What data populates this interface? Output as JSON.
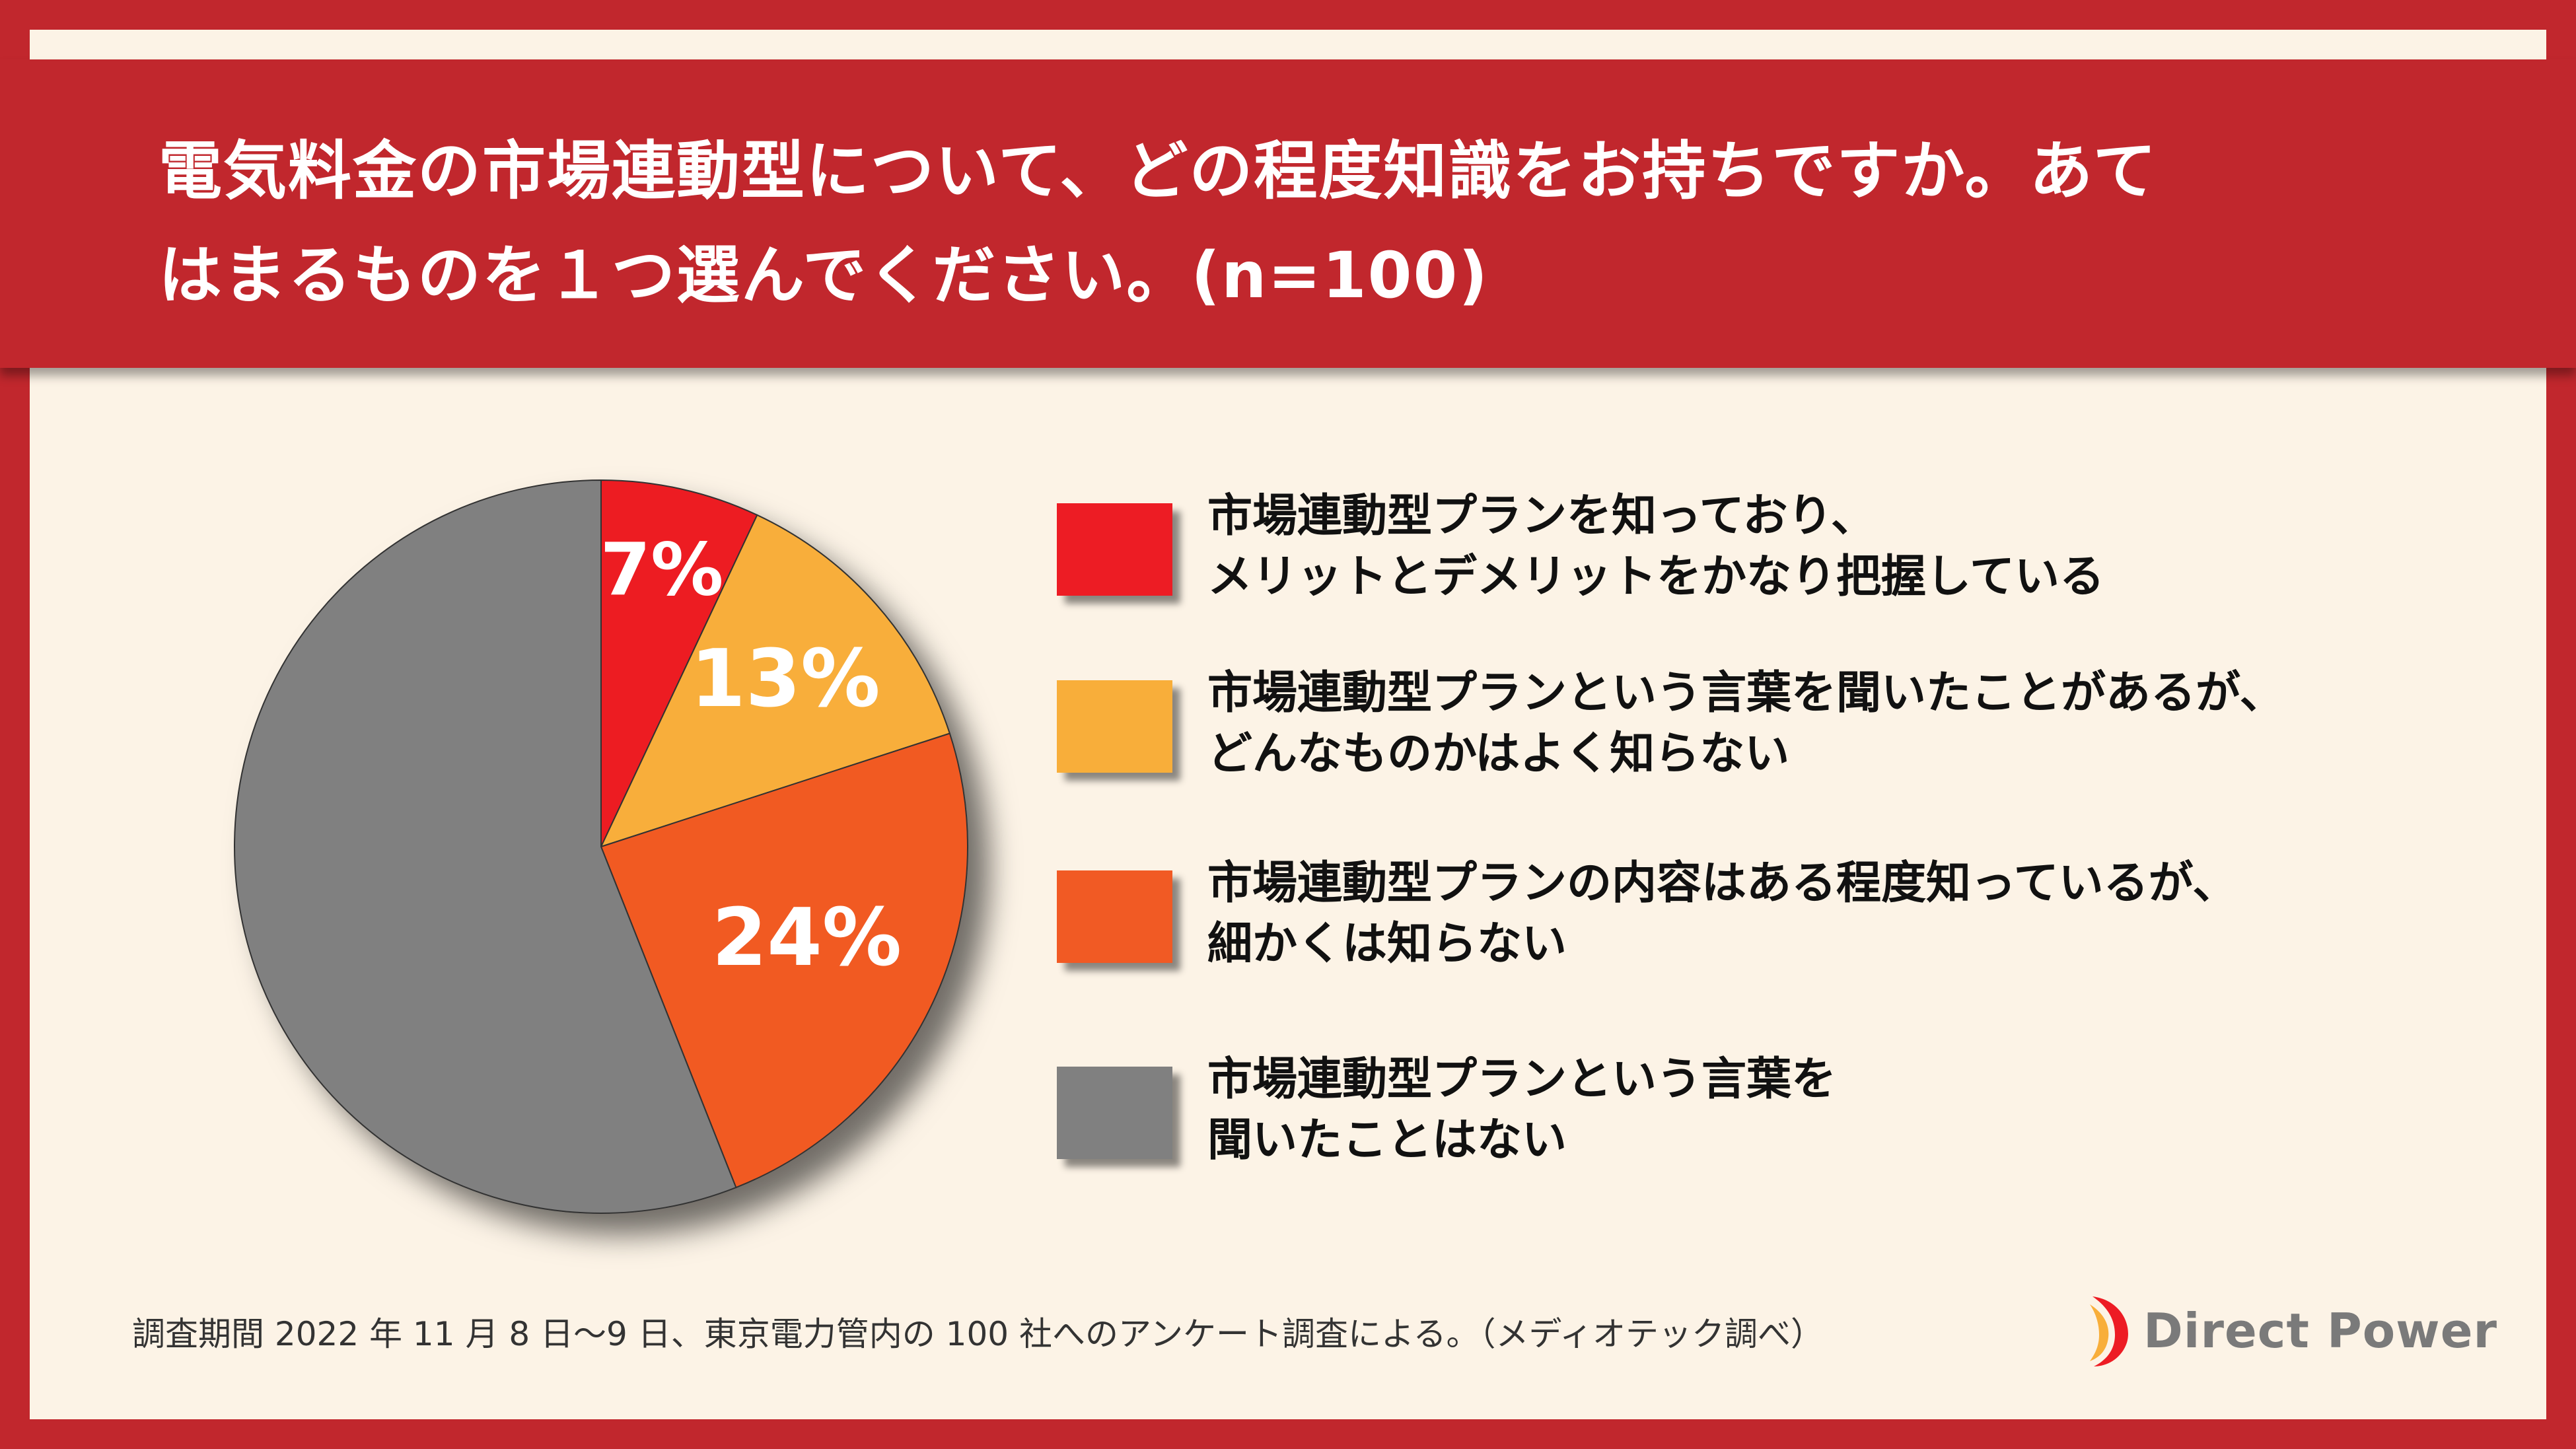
{
  "title": {
    "line1": "電気料金の市場連動型について、どの程度知識をお持ちですか。あて",
    "line2": "はまるものを１つ選んでください。(n=100)"
  },
  "chart_data": {
    "type": "pie",
    "title": "電気料金の市場連動型について、どの程度知識をお持ちですか。あてはまるものを１つ選んでください。(n=100)",
    "slices": [
      {
        "label": "市場連動型プランを知っており、メリットとデメリットをかなり把握している",
        "value": 7,
        "display": "7%",
        "color": "#ed1c24"
      },
      {
        "label": "市場連動型プランという言葉を聞いたことがあるが、どんなものかはよく知らない",
        "value": 13,
        "display": "13%",
        "color": "#f8ae3a"
      },
      {
        "label": "市場連動型プランの内容はある程度知っているが、細かくは知らない",
        "value": 24,
        "display": "24%",
        "color": "#f15a24"
      },
      {
        "label": "市場連動型プランという言葉を聞いたことはない",
        "value": 56,
        "display": "",
        "color": "#808080"
      }
    ],
    "legend_placement": "right"
  },
  "legend": [
    {
      "line1": "市場連動型プランを知っており、",
      "line2": "メリットとデメリットをかなり把握している",
      "color": "#ed1c24"
    },
    {
      "line1": "市場連動型プランという言葉を聞いたことがあるが、",
      "line2": "どんなものかはよく知らない",
      "color": "#f8ae3a"
    },
    {
      "line1": "市場連動型プランの内容はある程度知っているが、",
      "line2": "細かくは知らない",
      "color": "#f15a24"
    },
    {
      "line1": "市場連動型プランという言葉を",
      "line2": "聞いたことはない",
      "color": "#808080"
    }
  ],
  "footnote": "調査期間 2022 年 11 月 8 日〜9 日、東京電力管内の 100 社へのアンケート調査による。（メディオテック調べ）",
  "brand": {
    "name": "Direct Power",
    "mark_icon": "direct-power-logo-icon"
  },
  "colors": {
    "frame": "#c1272d",
    "background": "#fcf3e6"
  }
}
